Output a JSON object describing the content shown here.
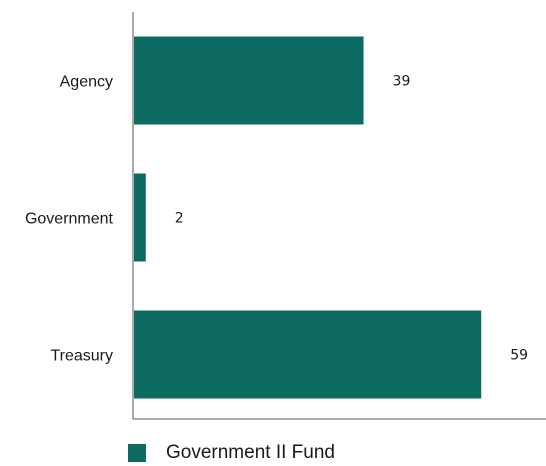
{
  "chart_data": {
    "type": "bar",
    "orientation": "horizontal",
    "categories": [
      "Agency",
      "Government",
      "Treasury"
    ],
    "series": [
      {
        "name": "Government II Fund",
        "values": [
          39,
          2,
          59
        ],
        "color": "#0e6b62"
      }
    ],
    "title": "",
    "xlabel": "",
    "ylabel": "",
    "xlim": [
      0,
      70
    ],
    "grid": false,
    "legend": "bottom-left",
    "data_labels": [
      "39",
      "2",
      "59"
    ]
  },
  "legend": {
    "label": "Government II Fund",
    "color": "#0e6b62"
  }
}
